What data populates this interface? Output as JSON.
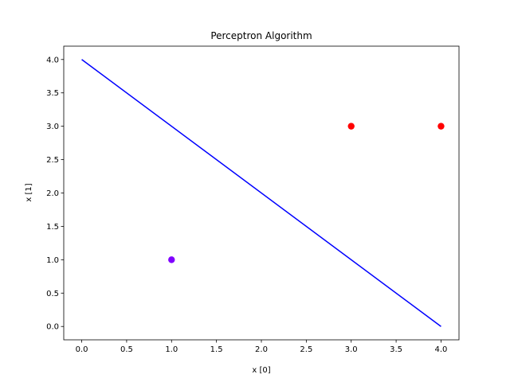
{
  "chart_data": {
    "type": "scatter",
    "title": "Perceptron Algorithm",
    "xlabel": "x [0]",
    "ylabel": "x [1]",
    "xlim": [
      -0.2,
      4.2
    ],
    "ylim": [
      -0.2,
      4.2
    ],
    "xticks": [
      0.0,
      0.5,
      1.0,
      1.5,
      2.0,
      2.5,
      3.0,
      3.5,
      4.0
    ],
    "yticks": [
      0.0,
      0.5,
      1.0,
      1.5,
      2.0,
      2.5,
      3.0,
      3.5,
      4.0
    ],
    "xtick_labels": [
      "0.0",
      "0.5",
      "1.0",
      "1.5",
      "2.0",
      "2.5",
      "3.0",
      "3.5",
      "4.0"
    ],
    "ytick_labels": [
      "0.0",
      "0.5",
      "1.0",
      "1.5",
      "2.0",
      "2.5",
      "3.0",
      "3.5",
      "4.0"
    ],
    "grid": false,
    "points": [
      {
        "x": 1.0,
        "y": 1.0,
        "color": "#8000ff"
      },
      {
        "x": 3.0,
        "y": 3.0,
        "color": "#ff0000"
      },
      {
        "x": 4.0,
        "y": 3.0,
        "color": "#ff0000"
      }
    ],
    "line": {
      "x": [
        0.0,
        4.0
      ],
      "y": [
        4.0,
        0.0
      ],
      "color": "#0000ff"
    }
  }
}
